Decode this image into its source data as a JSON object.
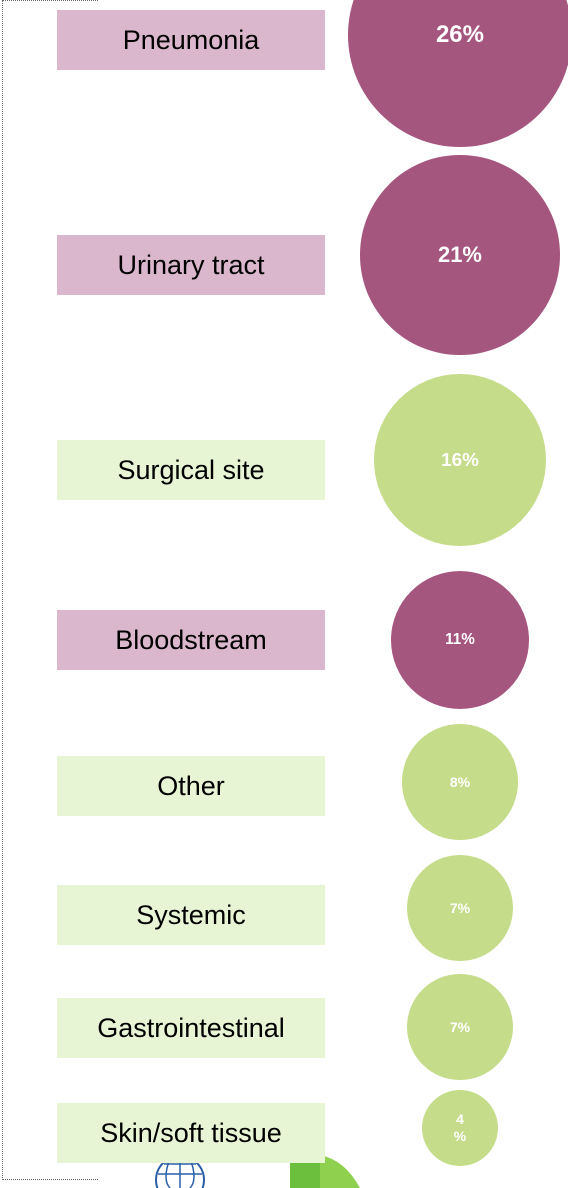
{
  "chart_data": {
    "type": "bubble",
    "categories": [
      "Pneumonia",
      "Urinary tract",
      "Surgical site",
      "Bloodstream",
      "Other",
      "Systemic",
      "Gastrointestinal",
      "Skin/soft tissue"
    ],
    "values": [
      26,
      21,
      16,
      11,
      8,
      7,
      7,
      4
    ],
    "value_labels": [
      "26%",
      "21%",
      "16%",
      "11%",
      "8%",
      "7%",
      "7%",
      "4 %"
    ],
    "colors": [
      "#a5567f",
      "#a5567f",
      "#c5dc8a",
      "#a5567f",
      "#c5dc8a",
      "#c5dc8a",
      "#c5dc8a",
      "#c5dc8a"
    ],
    "box_colors": [
      "#dbb7cd",
      "#dbb7cd",
      "#e8f5d5",
      "#dbb7cd",
      "#e8f5d5",
      "#e8f5d5",
      "#e8f5d5",
      "#e8f5d5"
    ]
  }
}
